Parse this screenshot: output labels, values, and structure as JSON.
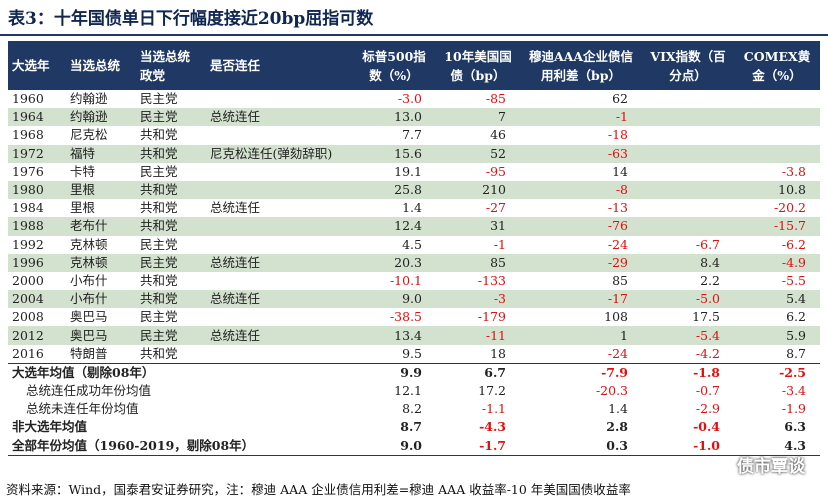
{
  "title": "表3：十年国债单日下行幅度接近20bp屈指可数",
  "headers": [
    "大选年",
    "当选总统",
    "当选总统政党",
    "是否连任",
    "标普500指数（%）",
    "10年美国国债（bp）",
    "穆迪AAA企业债信用利差（bp）",
    "VIX指数（百分点）",
    "COMEX黄金（%）"
  ],
  "rows": [
    {
      "cells": [
        "1960",
        "约翰逊",
        "民主党",
        "",
        "-3.0",
        "-85",
        "62",
        "",
        ""
      ]
    },
    {
      "cells": [
        "1964",
        "约翰逊",
        "民主党",
        "总统连任",
        "13.0",
        "7",
        "-1",
        "",
        ""
      ]
    },
    {
      "cells": [
        "1968",
        "尼克松",
        "共和党",
        "",
        "7.7",
        "46",
        "-18",
        "",
        ""
      ]
    },
    {
      "cells": [
        "1972",
        "福特",
        "共和党",
        "尼克松连任(弹劾辞职)",
        "15.6",
        "52",
        "-63",
        "",
        ""
      ]
    },
    {
      "cells": [
        "1976",
        "卡特",
        "民主党",
        "",
        "19.1",
        "-95",
        "14",
        "",
        "-3.8"
      ]
    },
    {
      "cells": [
        "1980",
        "里根",
        "共和党",
        "",
        "25.8",
        "210",
        "-8",
        "",
        "10.8"
      ]
    },
    {
      "cells": [
        "1984",
        "里根",
        "共和党",
        "总统连任",
        "1.4",
        "-27",
        "-13",
        "",
        "-20.2"
      ]
    },
    {
      "cells": [
        "1988",
        "老布什",
        "共和党",
        "",
        "12.4",
        "31",
        "-76",
        "",
        "-15.7"
      ]
    },
    {
      "cells": [
        "1992",
        "克林顿",
        "民主党",
        "",
        "4.5",
        "-1",
        "-24",
        "-6.7",
        "-6.2"
      ]
    },
    {
      "cells": [
        "1996",
        "克林顿",
        "民主党",
        "总统连任",
        "20.3",
        "85",
        "-29",
        "8.4",
        "-4.9"
      ]
    },
    {
      "cells": [
        "2000",
        "小布什",
        "共和党",
        "",
        "-10.1",
        "-133",
        "85",
        "2.2",
        "-5.5"
      ]
    },
    {
      "cells": [
        "2004",
        "小布什",
        "共和党",
        "总统连任",
        "9.0",
        "-3",
        "-17",
        "-5.0",
        "5.4"
      ]
    },
    {
      "cells": [
        "2008",
        "奥巴马",
        "民主党",
        "",
        "-38.5",
        "-179",
        "108",
        "17.5",
        "6.2"
      ]
    },
    {
      "cells": [
        "2012",
        "奥巴马",
        "民主党",
        "总统连任",
        "13.4",
        "-11",
        "1",
        "-5.4",
        "5.9"
      ]
    },
    {
      "cells": [
        "2016",
        "特朗普",
        "共和党",
        "",
        "9.5",
        "18",
        "-24",
        "-4.2",
        "8.7"
      ]
    }
  ],
  "summary": [
    {
      "label": "大选年均值（剔除08年）",
      "values": [
        "9.9",
        "6.7",
        "-7.9",
        "-1.8",
        "-2.5"
      ]
    },
    {
      "label": "总统连任成功年份均值",
      "values": [
        "12.1",
        "17.2",
        "-20.3",
        "-0.7",
        "-3.4"
      ]
    },
    {
      "label": "总统未连任年份均值",
      "values": [
        "8.2",
        "-1.1",
        "1.4",
        "-2.9",
        "-1.9"
      ]
    },
    {
      "label": "非大选年均值",
      "values": [
        "8.7",
        "-4.3",
        "2.8",
        "-0.4",
        "6.3"
      ]
    },
    {
      "label": "全部年份均值（1960-2019，剔除08年）",
      "values": [
        "9.0",
        "-1.7",
        "0.3",
        "-1.0",
        "4.3"
      ]
    }
  ],
  "source": "资料来源：Wind，国泰君安证券研究，注：穆迪 AAA 企业债信用利差=穆迪 AAA 收益率-10 年美国国债收益率",
  "watermark": "债市覃谈",
  "colors": {
    "header_bg": "#1f3864",
    "alt_row": "#d3e1cf",
    "negative": "#e01010"
  }
}
